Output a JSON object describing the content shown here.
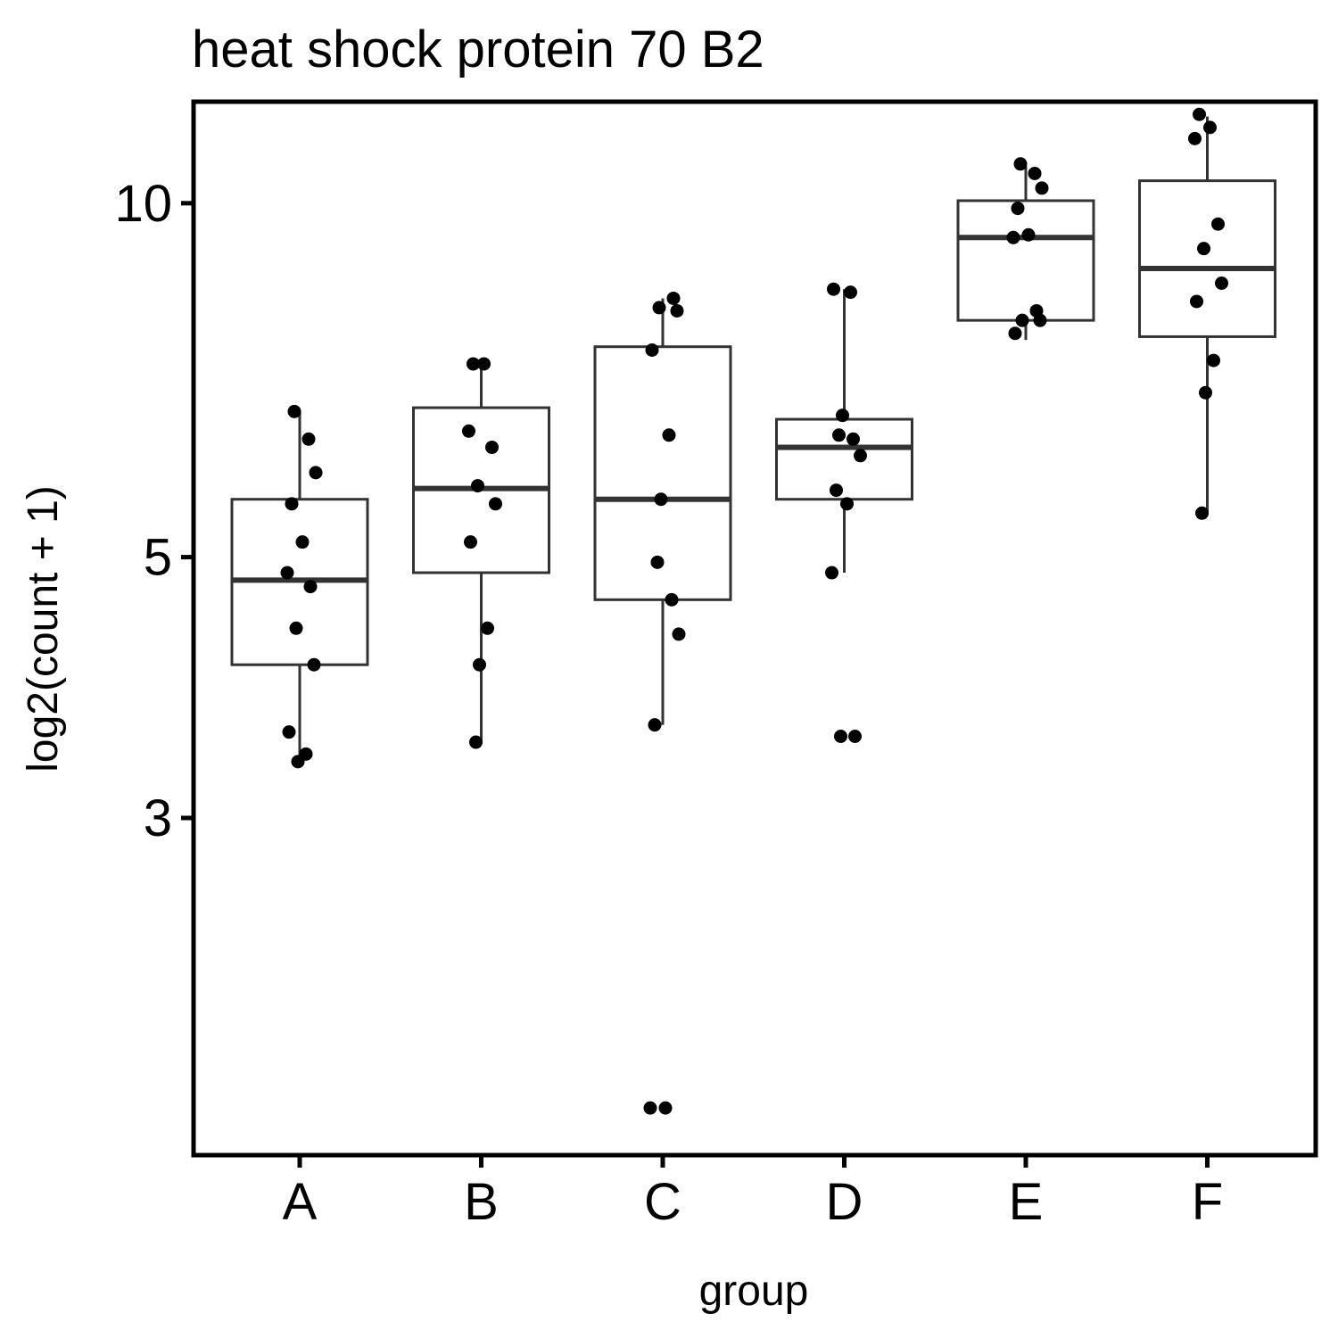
{
  "chart_data": {
    "type": "box",
    "title": "heat shock protein 70 B2",
    "xlabel": "group",
    "ylabel": "log2(count + 1)",
    "y_scale": "log",
    "ylim": [
      1.55,
      12.2
    ],
    "y_ticks": [
      3,
      5,
      10
    ],
    "y_tick_labels": [
      "3",
      "5",
      "10"
    ],
    "grid": false,
    "legend": "none",
    "colors": {
      "box_line": "#333333",
      "point": "#000000",
      "frame": "#000000"
    },
    "categories": [
      "A",
      "B",
      "C",
      "D",
      "E",
      "F"
    ],
    "boxes": [
      {
        "group": "A",
        "q1": 4.05,
        "median": 4.78,
        "q3": 5.6,
        "whisker_low": 3.35,
        "whisker_high": 6.65
      },
      {
        "group": "B",
        "q1": 4.85,
        "median": 5.72,
        "q3": 6.7,
        "whisker_low": 3.48,
        "whisker_high": 7.3
      },
      {
        "group": "C",
        "q1": 4.6,
        "median": 5.6,
        "q3": 7.55,
        "whisker_low": 3.6,
        "whisker_high": 8.3
      },
      {
        "group": "D",
        "q1": 5.6,
        "median": 6.2,
        "q3": 6.55,
        "whisker_low": 4.85,
        "whisker_high": 8.45
      },
      {
        "group": "E",
        "q1": 7.95,
        "median": 9.35,
        "q3": 10.05,
        "whisker_low": 7.65,
        "whisker_high": 10.75
      },
      {
        "group": "F",
        "q1": 7.7,
        "median": 8.8,
        "q3": 10.45,
        "whisker_low": 5.45,
        "whisker_high": 11.85
      }
    ],
    "points": [
      {
        "group": "A",
        "values": [
          6.65,
          6.3,
          5.9,
          5.55,
          5.15,
          4.85,
          4.72,
          4.35,
          4.05,
          3.55,
          3.4,
          3.35
        ]
      },
      {
        "group": "B",
        "values": [
          7.3,
          7.3,
          6.4,
          6.2,
          5.75,
          5.55,
          5.15,
          4.35,
          4.05,
          3.48
        ]
      },
      {
        "group": "C",
        "values": [
          8.3,
          8.15,
          8.1,
          7.5,
          6.35,
          5.6,
          4.95,
          4.6,
          4.3,
          3.6,
          1.7,
          1.7
        ]
      },
      {
        "group": "D",
        "values": [
          8.45,
          8.4,
          6.6,
          6.35,
          6.3,
          6.1,
          5.7,
          5.55,
          4.85,
          3.52,
          3.52
        ]
      },
      {
        "group": "E",
        "values": [
          10.8,
          10.6,
          10.3,
          9.9,
          9.4,
          9.35,
          8.1,
          7.95,
          7.95,
          7.75
        ]
      },
      {
        "group": "F",
        "values": [
          11.9,
          11.6,
          11.35,
          9.6,
          9.15,
          8.55,
          8.25,
          7.35,
          6.9,
          5.45
        ]
      }
    ]
  }
}
